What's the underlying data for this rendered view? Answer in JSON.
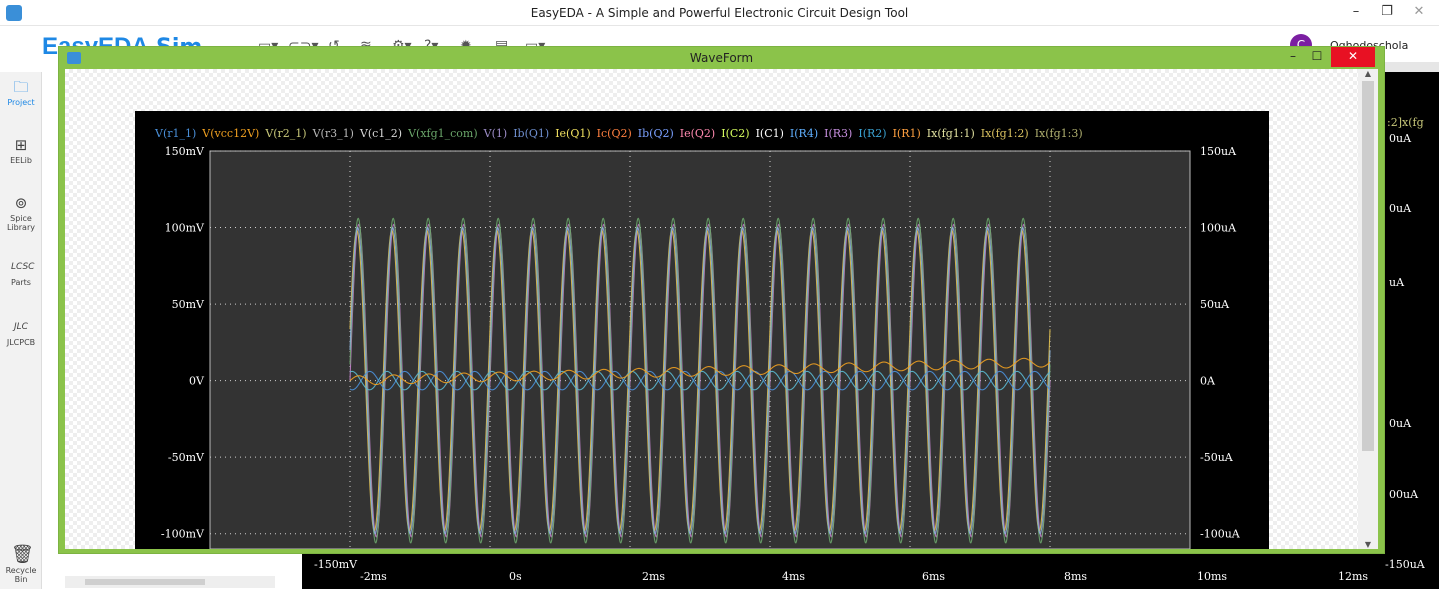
{
  "app": {
    "window_title": "EasyEDA - A Simple and Powerful Electronic Circuit Design Tool",
    "logo_text": "EasyEDA",
    "mode_text": "Sim",
    "user_initial": "C",
    "user_name": "Oghodoschola"
  },
  "sidebar": {
    "items": [
      {
        "label": "Project",
        "icon": "folder-icon"
      },
      {
        "label": "EELib",
        "icon": "chip-icon"
      },
      {
        "label": "Spice Library",
        "icon": "search-library-icon"
      },
      {
        "label": "Parts",
        "icon": "lcsc-icon"
      },
      {
        "label": "JLCPCB",
        "icon": "jlc-icon"
      },
      {
        "label": "Recycle Bin",
        "icon": "trash-icon"
      }
    ]
  },
  "background_window": {
    "right_labels": [
      ":2]x(fg",
      "0uA",
      "0uA",
      "uA",
      "0uA",
      "00uA",
      "-150uA"
    ],
    "bottom_y_label": "-150mV",
    "x_ticks": [
      "-2ms",
      "0s",
      "2ms",
      "4ms",
      "6ms",
      "8ms",
      "10ms",
      "12ms"
    ]
  },
  "waveform_window": {
    "title": "WaveForm",
    "minimize": "–",
    "maximize": "☐",
    "close": "✕"
  },
  "chart_data": {
    "type": "line",
    "title": "",
    "xlabel": "",
    "ylabel": "",
    "legend_position": "top",
    "grid": true,
    "left_axis": {
      "ticks": [
        "150mV",
        "100mV",
        "50mV",
        "0V",
        "-50mV",
        "-100mV"
      ],
      "values": [
        150,
        100,
        50,
        0,
        -50,
        -100
      ],
      "unit": "mV"
    },
    "right_axis": {
      "ticks": [
        "150uA",
        "100uA",
        "50uA",
        "0A",
        "-50uA",
        "-100uA"
      ],
      "values": [
        150,
        100,
        50,
        0,
        -50,
        -100
      ],
      "unit": "uA"
    },
    "xlim_ms": [
      -2,
      12
    ],
    "ylim_mV": [
      -110,
      150
    ],
    "signal": {
      "start_ms": 0,
      "end_ms": 10,
      "cycles": 20
    },
    "legend": [
      {
        "name": "V(r1_1)",
        "color": "#4a90d9"
      },
      {
        "name": "V(vcc12V)",
        "color": "#f0a020"
      },
      {
        "name": "V(r2_1)",
        "color": "#c8c87a"
      },
      {
        "name": "V(r3_1)",
        "color": "#b8b8b8"
      },
      {
        "name": "V(c1_2)",
        "color": "#d8d8d8"
      },
      {
        "name": "V(xfg1_com)",
        "color": "#6aa56a"
      },
      {
        "name": "V(1)",
        "color": "#9e8ec9"
      },
      {
        "name": "Ib(Q1)",
        "color": "#6f8fcf"
      },
      {
        "name": "Ie(Q1)",
        "color": "#f0e060"
      },
      {
        "name": "Ic(Q2)",
        "color": "#ff8040"
      },
      {
        "name": "Ib(Q2)",
        "color": "#7aa0ff"
      },
      {
        "name": "Ie(Q2)",
        "color": "#ff8ab0"
      },
      {
        "name": "I(C2)",
        "color": "#d8ff60"
      },
      {
        "name": "I(C1)",
        "color": "#ffffff"
      },
      {
        "name": "I(R4)",
        "color": "#60b0ff"
      },
      {
        "name": "I(R3)",
        "color": "#c890e0"
      },
      {
        "name": "I(R2)",
        "color": "#3aa0d0"
      },
      {
        "name": "I(R1)",
        "color": "#ffa040"
      },
      {
        "name": "Ix(fg1:1)",
        "color": "#e0e0a0"
      },
      {
        "name": "Ix(fg1:2)",
        "color": "#d8c060"
      },
      {
        "name": "Ix(fg1:3)",
        "color": "#b0b070"
      }
    ],
    "series": [
      {
        "name": "V(r3_1)",
        "color": "#c080c8",
        "amplitude_mV": 102,
        "phase": 0
      },
      {
        "name": "V(r2_1)",
        "color": "#e0c050",
        "amplitude_mV": 98,
        "phase": 0.35
      },
      {
        "name": "V(xfg1_com)",
        "color": "#6aa56a",
        "amplitude_mV": 106,
        "phase": 0.1
      },
      {
        "name": "Ib(Q1)",
        "color": "#8ab0d8",
        "amplitude_mV": 100,
        "phase": 0.2
      },
      {
        "name": "I(R4)",
        "color": "#5ab8d0",
        "amplitude_mV": 6,
        "phase": 1.2
      },
      {
        "name": "I(R2)",
        "color": "#4a90d9",
        "amplitude_mV": 6,
        "phase": 4.3
      },
      {
        "name": "V(vcc12V)",
        "color": "#f0a020",
        "amplitude_mV": 3,
        "phase": 0,
        "drift_mV": 12
      }
    ]
  }
}
